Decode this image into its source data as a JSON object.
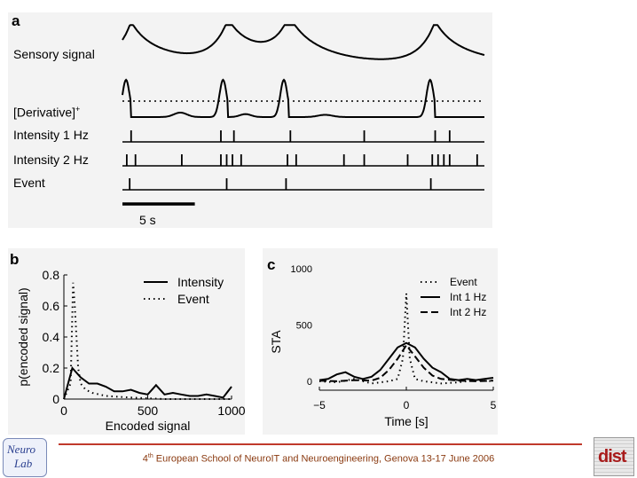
{
  "panels": {
    "a": "a",
    "b": "b",
    "c": "c"
  },
  "footer": {
    "prefix": "4",
    "ordinal": "th",
    "text": " European School of NeuroIT and Neuroengineering, Genova 13-17 June 2006"
  },
  "logos": {
    "left_top": "Neuro",
    "left_bottom": "Lab",
    "right": "dist"
  },
  "chart_data": [
    {
      "type": "line",
      "panel": "a",
      "rows": [
        {
          "label": "Sensory signal"
        },
        {
          "label": "[Derivative]",
          "superscript": "+"
        },
        {
          "label": "Intensity 1 Hz",
          "events_s": [
            0.6,
            6.8,
            7.7,
            11.6,
            16.7,
            21.6,
            22.6
          ]
        },
        {
          "label": "Intensity 2 Hz",
          "events_s": [
            0.3,
            0.9,
            4.1,
            6.8,
            7.2,
            7.6,
            8.2,
            11.4,
            12.0,
            15.3,
            16.7,
            19.7,
            21.4,
            21.8,
            22.2,
            22.6,
            24.5
          ]
        },
        {
          "label": "Event",
          "events_s": [
            0.5,
            7.2,
            11.3,
            21.3
          ]
        }
      ],
      "peaks_s": [
        0.6,
        7.3,
        11.5,
        21.6
      ],
      "xlim": [
        0,
        25
      ],
      "scalebar": {
        "seconds": 5,
        "label": "5 s"
      }
    },
    {
      "type": "line",
      "panel": "b",
      "xlabel": "Encoded signal",
      "ylabel": "p(encoded signal)",
      "xlim": [
        0,
        1000
      ],
      "ylim": [
        0,
        0.8
      ],
      "xticks": [
        0,
        500,
        1000
      ],
      "yticks": [
        0,
        0.2,
        0.4,
        0.6,
        0.8
      ],
      "legend_position": "top-right",
      "series": [
        {
          "name": "Intensity",
          "style": "solid",
          "x": [
            0,
            50,
            100,
            150,
            200,
            250,
            300,
            350,
            400,
            450,
            500,
            550,
            600,
            650,
            700,
            750,
            800,
            850,
            900,
            950,
            1000
          ],
          "y": [
            0.0,
            0.2,
            0.14,
            0.1,
            0.1,
            0.08,
            0.05,
            0.05,
            0.06,
            0.04,
            0.03,
            0.09,
            0.03,
            0.04,
            0.03,
            0.02,
            0.02,
            0.03,
            0.02,
            0.01,
            0.08
          ]
        },
        {
          "name": "Event",
          "style": "dotted",
          "x": [
            0,
            40,
            55,
            65,
            75,
            85,
            100,
            130,
            170,
            250,
            400,
            600,
            800,
            1000
          ],
          "y": [
            0.0,
            0.1,
            0.75,
            0.6,
            0.4,
            0.2,
            0.1,
            0.06,
            0.04,
            0.02,
            0.01,
            0.0,
            0.0,
            0.0
          ]
        }
      ]
    },
    {
      "type": "line",
      "panel": "c",
      "xlabel": "Time [s]",
      "ylabel": "STA",
      "xlim": [
        -5,
        5
      ],
      "ylim": [
        -80,
        1000
      ],
      "xticks": [
        -5,
        0,
        5
      ],
      "xtick_labels": [
        "−5",
        "0",
        "5"
      ],
      "yticks": [
        0,
        500,
        1000
      ],
      "legend_position": "top-right",
      "series": [
        {
          "name": "Event",
          "style": "dotted",
          "x": [
            -5,
            -4,
            -3,
            -2,
            -1,
            -0.5,
            -0.2,
            0,
            0.2,
            0.5,
            1,
            2,
            3,
            4,
            5
          ],
          "y": [
            0,
            -10,
            20,
            -20,
            0,
            20,
            200,
            780,
            200,
            20,
            0,
            -20,
            -10,
            10,
            0
          ]
        },
        {
          "name": "Int 1 Hz",
          "style": "solid",
          "x": [
            -5,
            -4.5,
            -4,
            -3.5,
            -3,
            -2.5,
            -2,
            -1.5,
            -1,
            -0.5,
            0,
            0.5,
            1,
            1.5,
            2,
            2.5,
            3,
            3.5,
            4,
            4.5,
            5
          ],
          "y": [
            10,
            20,
            60,
            80,
            40,
            20,
            40,
            100,
            200,
            300,
            340,
            300,
            200,
            120,
            80,
            20,
            10,
            20,
            10,
            20,
            30
          ]
        },
        {
          "name": "Int 2 Hz",
          "style": "dashed",
          "x": [
            -5,
            -4,
            -3,
            -2,
            -1.5,
            -1,
            -0.5,
            0,
            0.5,
            1,
            1.5,
            2,
            3,
            4,
            5
          ],
          "y": [
            5,
            0,
            10,
            5,
            30,
            100,
            200,
            320,
            220,
            120,
            50,
            20,
            5,
            0,
            5
          ]
        }
      ]
    }
  ]
}
